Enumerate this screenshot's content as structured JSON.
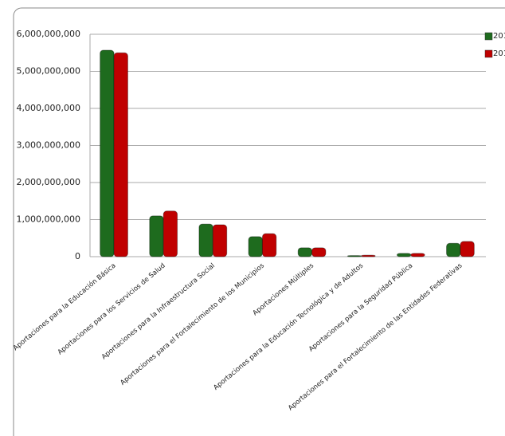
{
  "chart_data": {
    "type": "bar",
    "categories": [
      "Aportaciones para la Educación Básica",
      "Aportaciones para los Servicios de Salud",
      "Aportaciones para la Infraestructura Social",
      "Aportaciones para el Fortalecimiento de los Municipios",
      "Aportaciones Múltiples",
      "Aportaciones para la Educación Tecnológica y de Adultos",
      "Aportaciones para la Seguridad Pública",
      "Aportaciones para el Fortalecimiento de las Entidades Federativas"
    ],
    "series": [
      {
        "name": "201",
        "color": "#1e6b1e",
        "values": [
          5570000000,
          1100000000,
          880000000,
          540000000,
          240000000,
          30000000,
          90000000,
          360000000
        ]
      },
      {
        "name": "201",
        "color": "#c00000",
        "values": [
          5500000000,
          1230000000,
          860000000,
          620000000,
          240000000,
          40000000,
          90000000,
          410000000
        ]
      }
    ],
    "ylim": [
      0,
      6000000000
    ],
    "yticks": [
      0,
      {
        "value": 1000000000,
        "label": "1,000,000,000"
      },
      {
        "value": 2000000000,
        "label": "2,000,000,000"
      },
      {
        "value": 3000000000,
        "label": "3,000,000,000"
      },
      {
        "value": 4000000000,
        "label": "4,000,000,000"
      },
      {
        "value": 5000000000,
        "label": "5,000,000,000"
      },
      {
        "value": 6000000000,
        "label": "6,000,000,000"
      }
    ],
    "grid": true
  }
}
